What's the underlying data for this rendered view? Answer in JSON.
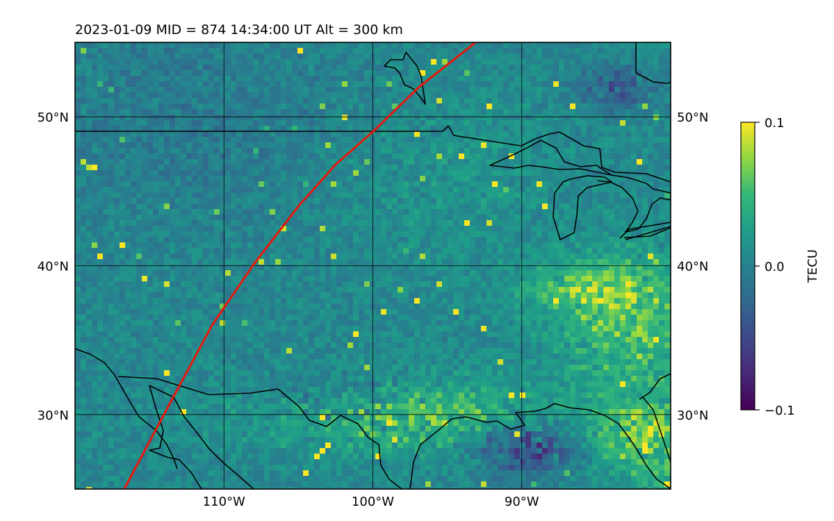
{
  "chart_data": {
    "type": "heatmap",
    "title": "2023-01-09  MID = 874    14:34:00  UT  Alt = 300 km",
    "x_axis": {
      "range": [
        -120,
        -80
      ],
      "ticks": [
        -110,
        -100,
        -90
      ],
      "tick_labels": [
        "110°W",
        "100°W",
        "90°W"
      ]
    },
    "y_axis": {
      "range": [
        25,
        55
      ],
      "ticks": [
        30,
        40,
        50
      ],
      "tick_labels": [
        "30°N",
        "40°N",
        "50°N"
      ]
    },
    "grid": true,
    "colorbar": {
      "label": "TECU",
      "colormap": "viridis",
      "range": [
        -0.1,
        0.1
      ],
      "ticks": [
        0.1,
        0.0,
        -0.1
      ],
      "tick_labels": [
        "0.1",
        "0.0",
        "−0.1"
      ]
    },
    "track": {
      "color": "#e8180c",
      "points": [
        [
          -116.7,
          25
        ],
        [
          -113.5,
          31
        ],
        [
          -110.8,
          36
        ],
        [
          -108.0,
          40.1
        ],
        [
          -105,
          44
        ],
        [
          -102.5,
          46.8
        ],
        [
          -100,
          49
        ],
        [
          -96.9,
          52
        ],
        [
          -93.1,
          55
        ]
      ]
    },
    "field": {
      "mean": 0.005,
      "spread": 0.02,
      "notes": "Mostly near-zero TEC perturbation (teal) with yellow enhancements concentrated over the southeast and Gulf coast, and dark negative patches in the southeast and northeast."
    },
    "coastlines": "North America outline: US–Canada border, Great Lakes, Gulf of Mexico coast, Baja California / Gulf of California, Pacific coast"
  }
}
